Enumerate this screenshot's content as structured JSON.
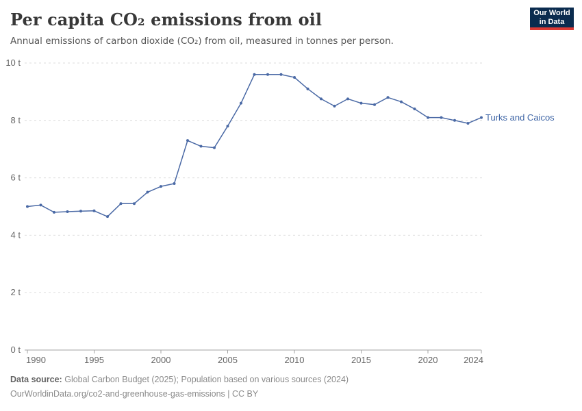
{
  "header": {
    "title": "Per capita CO₂ emissions from oil",
    "subtitle": "Annual emissions of carbon dioxide (CO₂) from oil, measured in tonnes per person."
  },
  "logo": {
    "line1": "Our World",
    "line2": "in Data"
  },
  "chart_data": {
    "type": "line",
    "title": "Per capita CO₂ emissions from oil",
    "entity": "Turks and Caicos",
    "unit": "t",
    "x": [
      1990,
      1991,
      1992,
      1993,
      1994,
      1995,
      1996,
      1997,
      1998,
      1999,
      2000,
      2001,
      2002,
      2003,
      2004,
      2005,
      2006,
      2007,
      2008,
      2009,
      2010,
      2011,
      2012,
      2013,
      2014,
      2015,
      2016,
      2017,
      2018,
      2019,
      2020,
      2021,
      2022,
      2023,
      2024
    ],
    "series": [
      {
        "name": "Turks and Caicos",
        "values": [
          5.0,
          5.05,
          4.8,
          4.82,
          4.84,
          4.85,
          4.65,
          5.1,
          5.1,
          5.5,
          5.7,
          5.8,
          7.3,
          7.1,
          7.05,
          7.8,
          8.6,
          9.6,
          9.6,
          9.6,
          9.5,
          9.1,
          8.75,
          8.5,
          8.75,
          8.6,
          8.55,
          8.8,
          8.65,
          8.4,
          8.1,
          8.1,
          8.0,
          7.9,
          8.1
        ]
      }
    ],
    "ylim": [
      0,
      10
    ],
    "yticks": [
      0,
      2,
      4,
      6,
      8,
      10
    ],
    "ytick_suffix": " t",
    "xticks": [
      1990,
      1995,
      2000,
      2005,
      2010,
      2015,
      2020,
      2024
    ],
    "grid": "dashed-horizontal",
    "legend_position": "end-of-line-label"
  },
  "footer": {
    "source_label": "Data source:",
    "source_text": "Global Carbon Budget (2025); Population based on various sources (2024)",
    "url_line": "OurWorldinData.org/co2-and-greenhouse-gas-emissions | CC BY"
  },
  "colors": {
    "line": "#4a69a5",
    "entity_label": "#3d64a5",
    "grid": "#dcdcdc",
    "axis": "#a3a3a3",
    "tick_text": "#666666",
    "logo_bg": "#0b2c4f",
    "logo_accent": "#dc3a34"
  }
}
